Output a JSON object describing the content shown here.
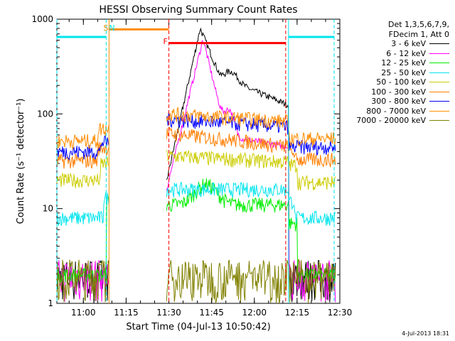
{
  "chart_data": {
    "type": "line",
    "title": "HESSI Observing Summary Count Rates",
    "xlabel": "Start Time (04-Jul-13 10:50:42)",
    "ylabel": "Count Rate (s⁻¹ detector⁻¹)",
    "yscale": "log",
    "ylim": [
      1,
      1000
    ],
    "xlim": [
      "10:50:42",
      "12:30:00"
    ],
    "x_tick_labels": [
      "11:00",
      "11:15",
      "11:30",
      "11:45",
      "12:00",
      "12:15",
      "12:30"
    ],
    "y_tick_labels": [
      "1",
      "10",
      "100",
      "1000"
    ],
    "legend_header": [
      "Det 1,3,5,6,7,9,",
      "FDecim 1, Att 0"
    ],
    "legend_position": "right",
    "annotations": [
      {
        "text": "S",
        "time": "11:08",
        "color": "#ff8c00"
      },
      {
        "text": "N",
        "time": "11:10",
        "color": "#00e5ee"
      },
      {
        "text": "F",
        "time": "11:29",
        "color": "#ff0000"
      }
    ],
    "segments": [
      {
        "name": "night",
        "color": "#00e5ee",
        "start": "10:50:42",
        "end": "11:08",
        "level": 650
      },
      {
        "name": "saa",
        "color": "#ff8c00",
        "start": "11:09",
        "end": "11:30",
        "level": 780
      },
      {
        "name": "flare",
        "color": "#ff0000",
        "start": "11:30",
        "end": "12:11",
        "level": 560
      },
      {
        "name": "night2",
        "color": "#00e5ee",
        "start": "12:12",
        "end": "12:28",
        "level": 650
      }
    ],
    "series": [
      {
        "name": "3 - 6 keV",
        "color": "#000000"
      },
      {
        "name": "6 - 12 keV",
        "color": "#ff00ff"
      },
      {
        "name": "12 - 25 keV",
        "color": "#00ee00"
      },
      {
        "name": "25 - 50 keV",
        "color": "#00e5ee"
      },
      {
        "name": "50 - 100 keV",
        "color": "#cccc00"
      },
      {
        "name": "100 - 300 keV",
        "color": "#ff7f00"
      },
      {
        "name": "300 - 800 keV",
        "color": "#0000ff"
      },
      {
        "name": "800 - 7000 keV",
        "color": "#ff8c00"
      },
      {
        "name": "7000 - 20000 keV",
        "color": "#808000"
      }
    ]
  },
  "footer": {
    "date_stamp": "4-Jul-2013 18:31"
  }
}
